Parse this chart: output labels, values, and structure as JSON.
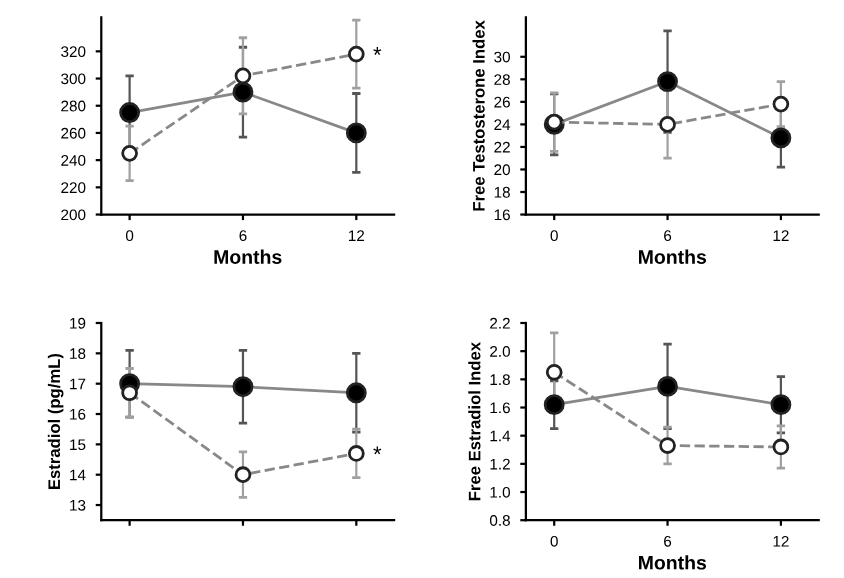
{
  "chart_data": [
    {
      "type": "line",
      "x": [
        0,
        6,
        12
      ],
      "xlabel": "Months",
      "xlim": [
        -1.5,
        14
      ],
      "xticks": [
        0,
        6,
        12
      ],
      "ylim": [
        200,
        345
      ],
      "yticks": [
        200,
        220,
        240,
        260,
        280,
        300,
        320
      ],
      "marker": "circle",
      "grid": false,
      "legend": false,
      "series": [
        {
          "color": "#000000",
          "line_style": "solid",
          "values": [
            275,
            290,
            260
          ],
          "errors": [
            27,
            33,
            29
          ]
        },
        {
          "color": "#ffffff",
          "line_style": "dashed",
          "values": [
            245,
            302,
            318
          ],
          "errors": [
            20,
            28,
            25
          ]
        }
      ],
      "annotations": [
        {
          "text": "*",
          "x": 12,
          "y": 318
        }
      ]
    },
    {
      "type": "line",
      "x": [
        0,
        6,
        12
      ],
      "xlabel": "Months",
      "ylabel": "Free Testosterone Index",
      "xlim": [
        -1.5,
        14
      ],
      "xticks": [
        0,
        6,
        12
      ],
      "ylim": [
        16,
        33.5
      ],
      "yticks": [
        16,
        18,
        20,
        22,
        24,
        26,
        28,
        30
      ],
      "marker": "circle",
      "grid": false,
      "legend": false,
      "series": [
        {
          "color": "#000000",
          "line_style": "solid",
          "values": [
            24.0,
            27.8,
            22.8
          ],
          "errors": [
            2.7,
            4.5,
            2.6
          ]
        },
        {
          "color": "#ffffff",
          "line_style": "dashed",
          "values": [
            24.2,
            24.0,
            25.8
          ],
          "errors": [
            2.6,
            3,
            2
          ]
        }
      ]
    },
    {
      "type": "line",
      "x": [
        0,
        6,
        12
      ],
      "ylabel": "Estradiol (pg/mL)",
      "xlim": [
        -1.5,
        14
      ],
      "xticks": [
        0,
        6,
        12
      ],
      "ylim": [
        12.5,
        19
      ],
      "yticks": [
        13,
        14,
        15,
        16,
        17,
        18,
        19
      ],
      "tick_labels": "y",
      "marker": "circle",
      "grid": false,
      "legend": false,
      "series": [
        {
          "color": "#000000",
          "line_style": "solid",
          "values": [
            17.0,
            16.9,
            16.7
          ],
          "errors": [
            1.1,
            1.2,
            1.3
          ]
        },
        {
          "color": "#ffffff",
          "line_style": "dashed",
          "values": [
            16.7,
            14.0,
            14.7
          ],
          "errors": [
            0.8,
            0.75,
            0.8
          ]
        }
      ],
      "annotations": [
        {
          "text": "*",
          "x": 12,
          "y": 14.7
        }
      ]
    },
    {
      "type": "line",
      "x": [
        0,
        6,
        12
      ],
      "xlabel": "Months",
      "ylabel": "Free Estradiol Index",
      "xlim": [
        -1.5,
        14
      ],
      "xticks": [
        0,
        6,
        12
      ],
      "ylim": [
        0.8,
        2.2
      ],
      "yticks": [
        0.8,
        {
          "value": 1,
          "label": "1.0"
        },
        1.2,
        1.4,
        1.6,
        1.8,
        {
          "value": 2,
          "label": "2.0"
        },
        2.2
      ],
      "marker": "circle",
      "grid": false,
      "legend": false,
      "series": [
        {
          "color": "#000000",
          "line_style": "solid",
          "values": [
            1.62,
            1.75,
            1.62
          ],
          "errors": [
            0.17,
            0.3,
            0.2
          ]
        },
        {
          "color": "#ffffff",
          "line_style": "dashed",
          "values": [
            1.85,
            1.33,
            1.32
          ],
          "errors": [
            0.28,
            0.13,
            0.15
          ]
        }
      ]
    }
  ]
}
